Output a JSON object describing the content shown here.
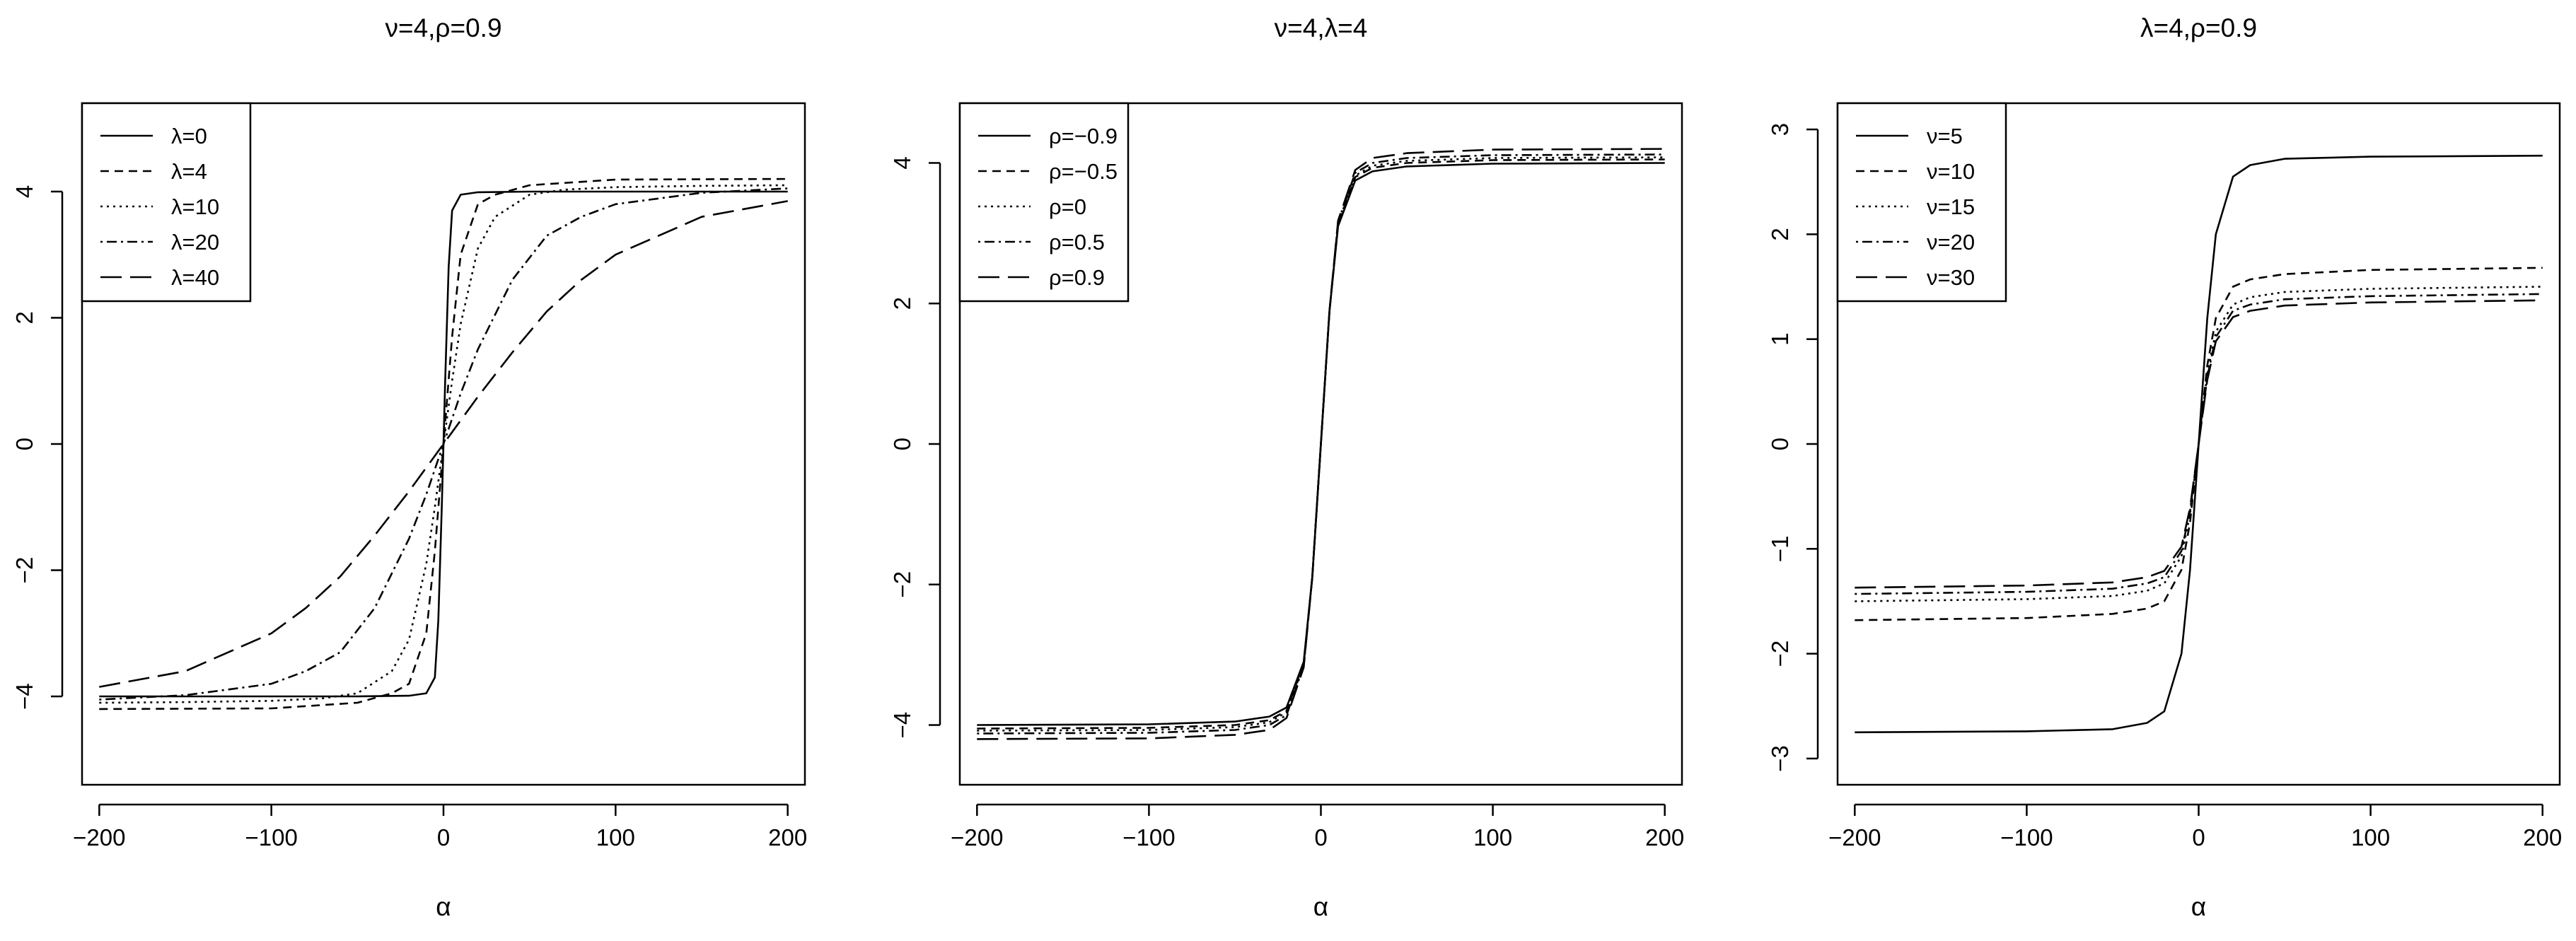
{
  "chart_data": [
    {
      "type": "line",
      "title": "ν=4,ρ=0.9",
      "xlabel": "α",
      "ylabel": "",
      "xlim": [
        -210,
        210
      ],
      "ylim": [
        -5.4,
        5.4
      ],
      "xticks": [
        -200,
        -100,
        0,
        100,
        200
      ],
      "yticks": [
        -4,
        -2,
        0,
        2,
        4
      ],
      "tick_labels": {
        "x": [
          "−200",
          "−100",
          "0",
          "100",
          "200"
        ],
        "y": [
          "−4",
          "−2",
          "0",
          "2",
          "4"
        ]
      },
      "grid": false,
      "legend_position": "top-left",
      "series": [
        {
          "name": "λ=0",
          "dash": "solid",
          "x": [
            -200,
            -100,
            -50,
            -20,
            -10,
            -5,
            -3,
            -1,
            0,
            1,
            3,
            5,
            10,
            20,
            50,
            100,
            200
          ],
          "y": [
            -4.0,
            -4.0,
            -4.0,
            -3.99,
            -3.95,
            -3.7,
            -2.8,
            -1.0,
            0.0,
            1.0,
            2.8,
            3.7,
            3.95,
            3.99,
            4.0,
            4.0,
            4.0
          ]
        },
        {
          "name": "λ=4",
          "dash": "short",
          "x": [
            -200,
            -100,
            -50,
            -30,
            -20,
            -10,
            -5,
            0,
            5,
            10,
            20,
            30,
            50,
            100,
            200
          ],
          "y": [
            -4.2,
            -4.19,
            -4.1,
            -3.95,
            -3.8,
            -3.0,
            -1.7,
            0.0,
            1.7,
            3.0,
            3.8,
            3.95,
            4.1,
            4.19,
            4.2
          ]
        },
        {
          "name": "λ=10",
          "dash": "dotted",
          "x": [
            -200,
            -150,
            -100,
            -70,
            -50,
            -30,
            -20,
            -10,
            -5,
            0,
            5,
            10,
            20,
            30,
            50,
            70,
            100,
            150,
            200
          ],
          "y": [
            -4.1,
            -4.09,
            -4.07,
            -4.03,
            -3.95,
            -3.6,
            -3.1,
            -1.9,
            -1.0,
            0.0,
            1.0,
            1.9,
            3.1,
            3.6,
            3.95,
            4.03,
            4.07,
            4.09,
            4.1
          ]
        },
        {
          "name": "λ=20",
          "dash": "dashdot",
          "x": [
            -200,
            -150,
            -100,
            -80,
            -60,
            -40,
            -20,
            -10,
            0,
            10,
            20,
            40,
            60,
            80,
            100,
            150,
            200
          ],
          "y": [
            -4.05,
            -3.98,
            -3.8,
            -3.6,
            -3.3,
            -2.6,
            -1.5,
            -0.8,
            0.0,
            0.8,
            1.5,
            2.6,
            3.3,
            3.6,
            3.8,
            3.98,
            4.05
          ]
        },
        {
          "name": "λ=40",
          "dash": "longdash",
          "x": [
            -200,
            -150,
            -100,
            -80,
            -60,
            -40,
            -20,
            0,
            20,
            40,
            60,
            80,
            100,
            150,
            200
          ],
          "y": [
            -3.85,
            -3.6,
            -3.0,
            -2.6,
            -2.1,
            -1.45,
            -0.75,
            0.0,
            0.75,
            1.45,
            2.1,
            2.6,
            3.0,
            3.6,
            3.85
          ]
        }
      ]
    },
    {
      "type": "line",
      "title": "ν=4,λ=4",
      "xlabel": "α",
      "ylabel": "",
      "xlim": [
        -210,
        210
      ],
      "ylim": [
        -4.85,
        4.85
      ],
      "xticks": [
        -200,
        -100,
        0,
        100,
        200
      ],
      "yticks": [
        -4,
        -2,
        0,
        2,
        4
      ],
      "tick_labels": {
        "x": [
          "−200",
          "−100",
          "0",
          "100",
          "200"
        ],
        "y": [
          "−4",
          "−2",
          "0",
          "2",
          "4"
        ]
      },
      "grid": false,
      "legend_position": "top-left",
      "series": [
        {
          "name": "ρ=−0.9",
          "dash": "solid",
          "x": [
            -200,
            -100,
            -50,
            -30,
            -20,
            -10,
            -5,
            0,
            5,
            10,
            20,
            30,
            50,
            100,
            200
          ],
          "y": [
            -4.0,
            -3.99,
            -3.95,
            -3.88,
            -3.75,
            -3.1,
            -1.9,
            0.0,
            1.9,
            3.1,
            3.75,
            3.88,
            3.95,
            3.99,
            4.0
          ]
        },
        {
          "name": "ρ=−0.5",
          "dash": "short",
          "x": [
            -200,
            -100,
            -50,
            -30,
            -20,
            -10,
            -5,
            0,
            5,
            10,
            20,
            30,
            50,
            100,
            200
          ],
          "y": [
            -4.05,
            -4.04,
            -4.0,
            -3.93,
            -3.8,
            -3.12,
            -1.9,
            0.0,
            1.9,
            3.12,
            3.8,
            3.93,
            4.0,
            4.04,
            4.05
          ]
        },
        {
          "name": "ρ=0",
          "dash": "dotted",
          "x": [
            -200,
            -100,
            -50,
            -30,
            -20,
            -10,
            -5,
            0,
            5,
            10,
            20,
            30,
            50,
            100,
            200
          ],
          "y": [
            -4.08,
            -4.07,
            -4.03,
            -3.96,
            -3.82,
            -3.14,
            -1.9,
            0.0,
            1.9,
            3.14,
            3.82,
            3.96,
            4.03,
            4.07,
            4.08
          ]
        },
        {
          "name": "ρ=0.5",
          "dash": "dashdot",
          "x": [
            -200,
            -100,
            -50,
            -30,
            -20,
            -10,
            -5,
            0,
            5,
            10,
            20,
            30,
            50,
            100,
            200
          ],
          "y": [
            -4.12,
            -4.11,
            -4.07,
            -4.0,
            -3.86,
            -3.16,
            -1.9,
            0.0,
            1.9,
            3.16,
            3.86,
            4.0,
            4.07,
            4.11,
            4.12
          ]
        },
        {
          "name": "ρ=0.9",
          "dash": "longdash",
          "x": [
            -200,
            -100,
            -50,
            -30,
            -20,
            -10,
            -5,
            0,
            5,
            10,
            20,
            30,
            50,
            100,
            200
          ],
          "y": [
            -4.2,
            -4.19,
            -4.14,
            -4.07,
            -3.9,
            -3.18,
            -1.9,
            0.0,
            1.9,
            3.18,
            3.9,
            4.07,
            4.14,
            4.19,
            4.2
          ]
        }
      ]
    },
    {
      "type": "line",
      "title": "λ=4,ρ=0.9",
      "xlabel": "α",
      "ylabel": "",
      "xlim": [
        -210,
        210
      ],
      "ylim": [
        -3.25,
        3.25
      ],
      "xticks": [
        -200,
        -100,
        0,
        100,
        200
      ],
      "yticks": [
        -3,
        -2,
        -1,
        0,
        1,
        2,
        3
      ],
      "tick_labels": {
        "x": [
          "−200",
          "−100",
          "0",
          "100",
          "200"
        ],
        "y": [
          "−3",
          "−2",
          "−1",
          "0",
          "1",
          "2",
          "3"
        ]
      },
      "grid": false,
      "legend_position": "top-left",
      "series": [
        {
          "name": "ν=5",
          "dash": "solid",
          "x": [
            -200,
            -100,
            -50,
            -30,
            -20,
            -10,
            -5,
            0,
            5,
            10,
            20,
            30,
            50,
            100,
            200
          ],
          "y": [
            -2.75,
            -2.74,
            -2.72,
            -2.66,
            -2.55,
            -2.0,
            -1.2,
            0.0,
            1.2,
            2.0,
            2.55,
            2.66,
            2.72,
            2.74,
            2.75
          ]
        },
        {
          "name": "ν=10",
          "dash": "short",
          "x": [
            -200,
            -100,
            -50,
            -30,
            -20,
            -10,
            -5,
            0,
            5,
            10,
            20,
            30,
            50,
            100,
            200
          ],
          "y": [
            -1.68,
            -1.66,
            -1.62,
            -1.57,
            -1.5,
            -1.2,
            -0.75,
            0.0,
            0.75,
            1.2,
            1.5,
            1.57,
            1.62,
            1.66,
            1.68
          ]
        },
        {
          "name": "ν=15",
          "dash": "dotted",
          "x": [
            -200,
            -100,
            -50,
            -30,
            -20,
            -10,
            -5,
            0,
            5,
            10,
            20,
            30,
            50,
            100,
            200
          ],
          "y": [
            -1.5,
            -1.48,
            -1.45,
            -1.4,
            -1.33,
            -1.07,
            -0.67,
            0.0,
            0.67,
            1.07,
            1.33,
            1.4,
            1.45,
            1.48,
            1.5
          ]
        },
        {
          "name": "ν=20",
          "dash": "dashdot",
          "x": [
            -200,
            -100,
            -50,
            -30,
            -20,
            -10,
            -5,
            0,
            5,
            10,
            20,
            30,
            50,
            100,
            200
          ],
          "y": [
            -1.43,
            -1.41,
            -1.38,
            -1.33,
            -1.27,
            -1.02,
            -0.64,
            0.0,
            0.64,
            1.02,
            1.27,
            1.33,
            1.38,
            1.41,
            1.43
          ]
        },
        {
          "name": "ν=30",
          "dash": "longdash",
          "x": [
            -200,
            -100,
            -50,
            -30,
            -20,
            -10,
            -5,
            0,
            5,
            10,
            20,
            30,
            50,
            100,
            200
          ],
          "y": [
            -1.37,
            -1.35,
            -1.32,
            -1.27,
            -1.21,
            -0.98,
            -0.61,
            0.0,
            0.61,
            0.98,
            1.21,
            1.27,
            1.32,
            1.35,
            1.37
          ]
        }
      ]
    }
  ]
}
